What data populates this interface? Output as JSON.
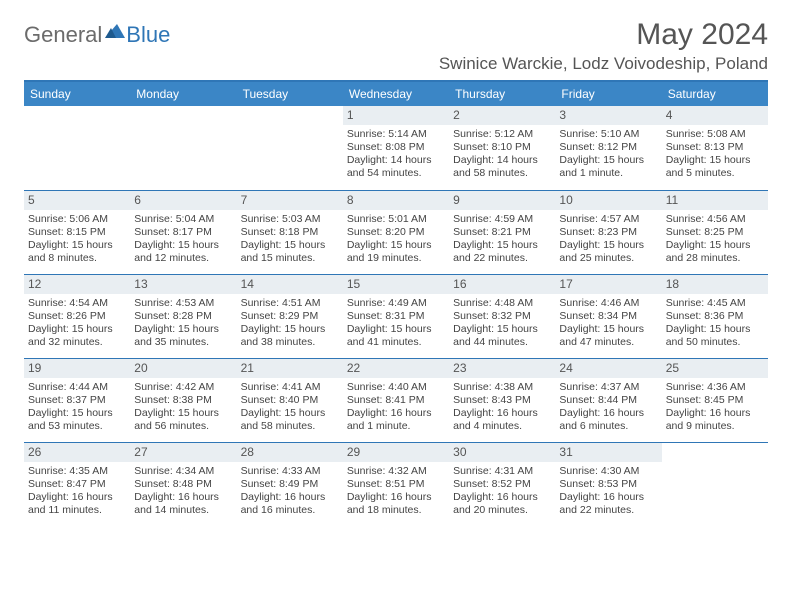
{
  "logo": {
    "general": "General",
    "blue": "Blue"
  },
  "title": "May 2024",
  "location": "Swinice Warckie, Lodz Voivodeship, Poland",
  "colors": {
    "header_bg": "#3b86c6",
    "accent": "#2f76b6",
    "daynum_bg": "#e9eef2",
    "text": "#555555",
    "body_text": "#444444"
  },
  "weekdays": [
    "Sunday",
    "Monday",
    "Tuesday",
    "Wednesday",
    "Thursday",
    "Friday",
    "Saturday"
  ],
  "weeks": [
    [
      {
        "n": "",
        "sunrise": "",
        "sunset": "",
        "daylight": ""
      },
      {
        "n": "",
        "sunrise": "",
        "sunset": "",
        "daylight": ""
      },
      {
        "n": "",
        "sunrise": "",
        "sunset": "",
        "daylight": ""
      },
      {
        "n": "1",
        "sunrise": "Sunrise: 5:14 AM",
        "sunset": "Sunset: 8:08 PM",
        "daylight": "Daylight: 14 hours and 54 minutes."
      },
      {
        "n": "2",
        "sunrise": "Sunrise: 5:12 AM",
        "sunset": "Sunset: 8:10 PM",
        "daylight": "Daylight: 14 hours and 58 minutes."
      },
      {
        "n": "3",
        "sunrise": "Sunrise: 5:10 AM",
        "sunset": "Sunset: 8:12 PM",
        "daylight": "Daylight: 15 hours and 1 minute."
      },
      {
        "n": "4",
        "sunrise": "Sunrise: 5:08 AM",
        "sunset": "Sunset: 8:13 PM",
        "daylight": "Daylight: 15 hours and 5 minutes."
      }
    ],
    [
      {
        "n": "5",
        "sunrise": "Sunrise: 5:06 AM",
        "sunset": "Sunset: 8:15 PM",
        "daylight": "Daylight: 15 hours and 8 minutes."
      },
      {
        "n": "6",
        "sunrise": "Sunrise: 5:04 AM",
        "sunset": "Sunset: 8:17 PM",
        "daylight": "Daylight: 15 hours and 12 minutes."
      },
      {
        "n": "7",
        "sunrise": "Sunrise: 5:03 AM",
        "sunset": "Sunset: 8:18 PM",
        "daylight": "Daylight: 15 hours and 15 minutes."
      },
      {
        "n": "8",
        "sunrise": "Sunrise: 5:01 AM",
        "sunset": "Sunset: 8:20 PM",
        "daylight": "Daylight: 15 hours and 19 minutes."
      },
      {
        "n": "9",
        "sunrise": "Sunrise: 4:59 AM",
        "sunset": "Sunset: 8:21 PM",
        "daylight": "Daylight: 15 hours and 22 minutes."
      },
      {
        "n": "10",
        "sunrise": "Sunrise: 4:57 AM",
        "sunset": "Sunset: 8:23 PM",
        "daylight": "Daylight: 15 hours and 25 minutes."
      },
      {
        "n": "11",
        "sunrise": "Sunrise: 4:56 AM",
        "sunset": "Sunset: 8:25 PM",
        "daylight": "Daylight: 15 hours and 28 minutes."
      }
    ],
    [
      {
        "n": "12",
        "sunrise": "Sunrise: 4:54 AM",
        "sunset": "Sunset: 8:26 PM",
        "daylight": "Daylight: 15 hours and 32 minutes."
      },
      {
        "n": "13",
        "sunrise": "Sunrise: 4:53 AM",
        "sunset": "Sunset: 8:28 PM",
        "daylight": "Daylight: 15 hours and 35 minutes."
      },
      {
        "n": "14",
        "sunrise": "Sunrise: 4:51 AM",
        "sunset": "Sunset: 8:29 PM",
        "daylight": "Daylight: 15 hours and 38 minutes."
      },
      {
        "n": "15",
        "sunrise": "Sunrise: 4:49 AM",
        "sunset": "Sunset: 8:31 PM",
        "daylight": "Daylight: 15 hours and 41 minutes."
      },
      {
        "n": "16",
        "sunrise": "Sunrise: 4:48 AM",
        "sunset": "Sunset: 8:32 PM",
        "daylight": "Daylight: 15 hours and 44 minutes."
      },
      {
        "n": "17",
        "sunrise": "Sunrise: 4:46 AM",
        "sunset": "Sunset: 8:34 PM",
        "daylight": "Daylight: 15 hours and 47 minutes."
      },
      {
        "n": "18",
        "sunrise": "Sunrise: 4:45 AM",
        "sunset": "Sunset: 8:36 PM",
        "daylight": "Daylight: 15 hours and 50 minutes."
      }
    ],
    [
      {
        "n": "19",
        "sunrise": "Sunrise: 4:44 AM",
        "sunset": "Sunset: 8:37 PM",
        "daylight": "Daylight: 15 hours and 53 minutes."
      },
      {
        "n": "20",
        "sunrise": "Sunrise: 4:42 AM",
        "sunset": "Sunset: 8:38 PM",
        "daylight": "Daylight: 15 hours and 56 minutes."
      },
      {
        "n": "21",
        "sunrise": "Sunrise: 4:41 AM",
        "sunset": "Sunset: 8:40 PM",
        "daylight": "Daylight: 15 hours and 58 minutes."
      },
      {
        "n": "22",
        "sunrise": "Sunrise: 4:40 AM",
        "sunset": "Sunset: 8:41 PM",
        "daylight": "Daylight: 16 hours and 1 minute."
      },
      {
        "n": "23",
        "sunrise": "Sunrise: 4:38 AM",
        "sunset": "Sunset: 8:43 PM",
        "daylight": "Daylight: 16 hours and 4 minutes."
      },
      {
        "n": "24",
        "sunrise": "Sunrise: 4:37 AM",
        "sunset": "Sunset: 8:44 PM",
        "daylight": "Daylight: 16 hours and 6 minutes."
      },
      {
        "n": "25",
        "sunrise": "Sunrise: 4:36 AM",
        "sunset": "Sunset: 8:45 PM",
        "daylight": "Daylight: 16 hours and 9 minutes."
      }
    ],
    [
      {
        "n": "26",
        "sunrise": "Sunrise: 4:35 AM",
        "sunset": "Sunset: 8:47 PM",
        "daylight": "Daylight: 16 hours and 11 minutes."
      },
      {
        "n": "27",
        "sunrise": "Sunrise: 4:34 AM",
        "sunset": "Sunset: 8:48 PM",
        "daylight": "Daylight: 16 hours and 14 minutes."
      },
      {
        "n": "28",
        "sunrise": "Sunrise: 4:33 AM",
        "sunset": "Sunset: 8:49 PM",
        "daylight": "Daylight: 16 hours and 16 minutes."
      },
      {
        "n": "29",
        "sunrise": "Sunrise: 4:32 AM",
        "sunset": "Sunset: 8:51 PM",
        "daylight": "Daylight: 16 hours and 18 minutes."
      },
      {
        "n": "30",
        "sunrise": "Sunrise: 4:31 AM",
        "sunset": "Sunset: 8:52 PM",
        "daylight": "Daylight: 16 hours and 20 minutes."
      },
      {
        "n": "31",
        "sunrise": "Sunrise: 4:30 AM",
        "sunset": "Sunset: 8:53 PM",
        "daylight": "Daylight: 16 hours and 22 minutes."
      },
      {
        "n": "",
        "sunrise": "",
        "sunset": "",
        "daylight": ""
      }
    ]
  ]
}
